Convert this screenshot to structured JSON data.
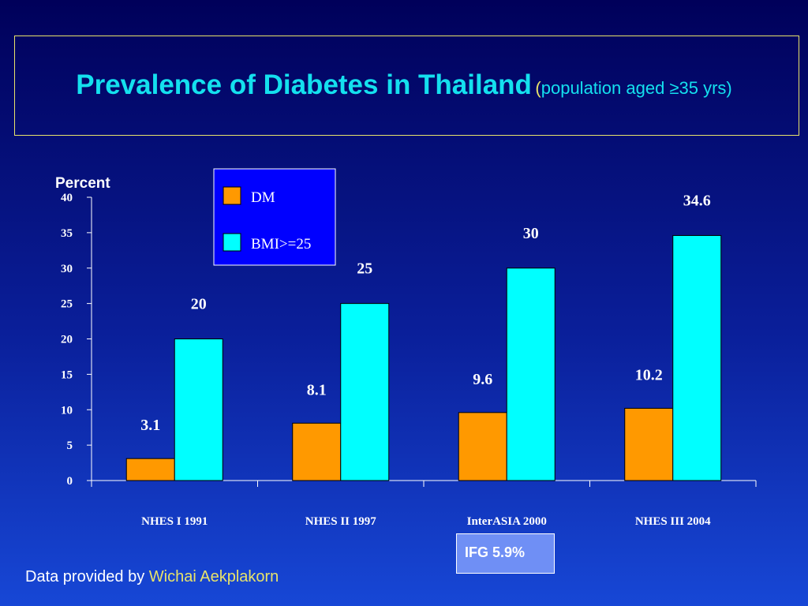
{
  "title": {
    "main": "Prevalence of Diabetes in Thailand",
    "open_paren": "(",
    "sub": "population aged ≥35 yrs)"
  },
  "chart_data": {
    "type": "bar",
    "ylabel": "Percent",
    "ylim": [
      0,
      40
    ],
    "yticks": [
      0,
      5,
      10,
      15,
      20,
      25,
      30,
      35,
      40
    ],
    "categories": [
      "NHES I 1991",
      "NHES II 1997",
      "InterASIA 2000",
      "NHES III 2004"
    ],
    "series": [
      {
        "name": "DM",
        "values": [
          3.1,
          8.1,
          9.6,
          10.2
        ],
        "labels": [
          "3.1",
          "8.1",
          "9.6",
          "10.2"
        ],
        "color": "#ff9900"
      },
      {
        "name": "BMI>=25",
        "values": [
          20,
          25,
          30,
          34.6
        ],
        "labels": [
          "20",
          "25",
          "30",
          "34.6"
        ],
        "color": "#00ffff"
      }
    ],
    "legend_position": "top-center",
    "grid": false
  },
  "annotation": {
    "text": "IFG 5.9%"
  },
  "credit": {
    "prefix": "Data provided by ",
    "name": "Wichai Aekplakorn"
  },
  "colors": {
    "title": "#14e0ee",
    "accent_yellow": "#e8e36a",
    "legend_bg": "#0000ff",
    "ifg_bg": "#6f8ff5"
  }
}
